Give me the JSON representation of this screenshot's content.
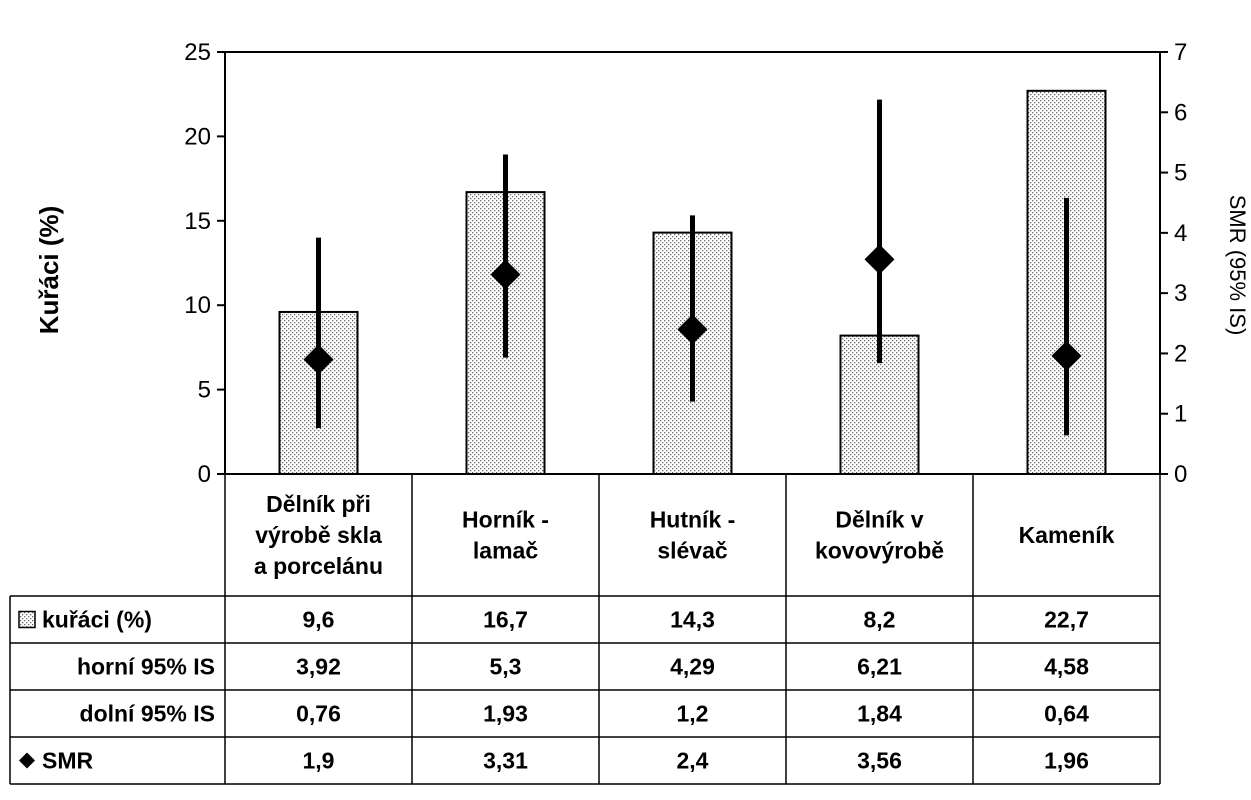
{
  "chart_data": {
    "type": "bar",
    "categories": [
      [
        "Dělník při",
        "výrobě skla",
        "a porcelánu"
      ],
      [
        "Horník -",
        "lamač"
      ],
      [
        "Hutník -",
        "slévač"
      ],
      [
        "Dělník v",
        "kovovýrobě"
      ],
      [
        "Kameník"
      ]
    ],
    "ylabel": "Kuřáci (%)",
    "y2label": "SMR (95% IS)",
    "ylim": [
      0,
      25
    ],
    "yticks": [
      0,
      5,
      10,
      15,
      20,
      25
    ],
    "y2lim": [
      0,
      7
    ],
    "y2ticks": [
      0,
      1,
      2,
      3,
      4,
      5,
      6,
      7
    ],
    "series": [
      {
        "name": "kuřáci (%)",
        "kind": "bar",
        "axis": "left",
        "values": [
          9.6,
          16.7,
          14.3,
          8.2,
          22.7
        ],
        "labels": [
          "9,6",
          "16,7",
          "14,3",
          "8,2",
          "22,7"
        ]
      },
      {
        "name": "horní 95% IS",
        "kind": "errorbar-upper",
        "axis": "right",
        "values": [
          3.92,
          5.3,
          4.29,
          6.21,
          4.58
        ],
        "labels": [
          "3,92",
          "5,3",
          "4,29",
          "6,21",
          "4,58"
        ]
      },
      {
        "name": "dolní 95% IS",
        "kind": "errorbar-lower",
        "axis": "right",
        "values": [
          0.76,
          1.93,
          1.2,
          1.84,
          0.64
        ],
        "labels": [
          "0,76",
          "1,93",
          "1,2",
          "1,84",
          "0,64"
        ]
      },
      {
        "name": "SMR",
        "kind": "marker",
        "axis": "right",
        "values": [
          1.9,
          3.31,
          2.4,
          3.56,
          1.96
        ],
        "labels": [
          "1,9",
          "3,31",
          "2,4",
          "3,56",
          "1,96"
        ]
      }
    ],
    "grid": false,
    "legend": "data-table"
  }
}
